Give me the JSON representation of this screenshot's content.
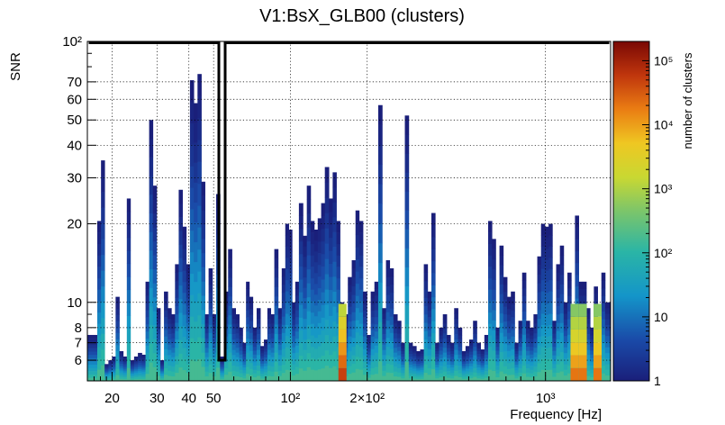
{
  "chart_data": {
    "type": "heatmap",
    "title": "V1:BsX_GLB00 (clusters)",
    "xlabel": "Frequency [Hz]",
    "ylabel": "SNR",
    "zlabel": "number of clusters",
    "x_scale": "log",
    "y_scale": "log",
    "z_scale": "log",
    "xlim": [
      16,
      1800
    ],
    "ylim": [
      5,
      100
    ],
    "zlim": [
      1,
      200000
    ],
    "grid": true,
    "x_ticks": [
      {
        "value": 20,
        "label": "20"
      },
      {
        "value": 30,
        "label": "30"
      },
      {
        "value": 40,
        "label": "40"
      },
      {
        "value": 50,
        "label": "50"
      },
      {
        "value": 100,
        "label": "10²"
      },
      {
        "value": 200,
        "label": "2×10²"
      },
      {
        "value": 1000,
        "label": "10³"
      }
    ],
    "y_ticks": [
      {
        "value": 6,
        "label": "6"
      },
      {
        "value": 7,
        "label": "7"
      },
      {
        "value": 8,
        "label": "8"
      },
      {
        "value": 10,
        "label": "10"
      },
      {
        "value": 20,
        "label": "20"
      },
      {
        "value": 30,
        "label": "30"
      },
      {
        "value": 40,
        "label": "40"
      },
      {
        "value": 50,
        "label": "50"
      },
      {
        "value": 60,
        "label": "60"
      },
      {
        "value": 70,
        "label": "70"
      },
      {
        "value": 100,
        "label": "10²"
      }
    ],
    "z_ticks": [
      {
        "value": 1,
        "label": "1"
      },
      {
        "value": 10,
        "label": "10"
      },
      {
        "value": 100,
        "label": "10²"
      },
      {
        "value": 1000,
        "label": "10³"
      },
      {
        "value": 10000,
        "label": "10⁴"
      },
      {
        "value": 100000,
        "label": "10⁵"
      }
    ],
    "column_peaks": [
      {
        "f": 17.2,
        "snr": 7.5
      },
      {
        "f": 17.8,
        "snr": 20.5
      },
      {
        "f": 18.4,
        "snr": 35
      },
      {
        "f": 19.0,
        "snr": 5.8
      },
      {
        "f": 19.7,
        "snr": 6
      },
      {
        "f": 20.3,
        "snr": 6.2
      },
      {
        "f": 21.0,
        "snr": 10.5
      },
      {
        "f": 21.7,
        "snr": 6.5
      },
      {
        "f": 22.5,
        "snr": 6.2
      },
      {
        "f": 23.2,
        "snr": 25
      },
      {
        "f": 24.0,
        "snr": 6
      },
      {
        "f": 24.8,
        "snr": 6.2
      },
      {
        "f": 25.7,
        "snr": 6.4
      },
      {
        "f": 26.6,
        "snr": 6.3
      },
      {
        "f": 27.5,
        "snr": 12
      },
      {
        "f": 28.4,
        "snr": 50
      },
      {
        "f": 29.4,
        "snr": 28
      },
      {
        "f": 30.4,
        "snr": 9.5
      },
      {
        "f": 31.4,
        "snr": 6
      },
      {
        "f": 32.5,
        "snr": 11
      },
      {
        "f": 33.6,
        "snr": 9.5
      },
      {
        "f": 34.7,
        "snr": 9
      },
      {
        "f": 35.9,
        "snr": 14
      },
      {
        "f": 37.1,
        "snr": 27
      },
      {
        "f": 38.4,
        "snr": 19.5
      },
      {
        "f": 39.7,
        "snr": 14
      },
      {
        "f": 41.1,
        "snr": 71
      },
      {
        "f": 42.5,
        "snr": 58
      },
      {
        "f": 44.0,
        "snr": 75
      },
      {
        "f": 45.5,
        "snr": 29
      },
      {
        "f": 47.0,
        "snr": 9
      },
      {
        "f": 48.6,
        "snr": 13.5
      },
      {
        "f": 50.3,
        "snr": 9
      },
      {
        "f": 52.0,
        "snr": 26
      },
      {
        "f": 54.0,
        "snr": 6.2
      },
      {
        "f": 56.0,
        "snr": 11
      },
      {
        "f": 58.0,
        "snr": 16
      },
      {
        "f": 60.0,
        "snr": 9.5
      },
      {
        "f": 62.0,
        "snr": 9
      },
      {
        "f": 64.0,
        "snr": 8
      },
      {
        "f": 66.0,
        "snr": 7
      },
      {
        "f": 68.0,
        "snr": 12
      },
      {
        "f": 70.0,
        "snr": 10.5
      },
      {
        "f": 72.5,
        "snr": 8
      },
      {
        "f": 75.0,
        "snr": 9.5
      },
      {
        "f": 77.5,
        "snr": 6.8
      },
      {
        "f": 80.0,
        "snr": 7.2
      },
      {
        "f": 82.5,
        "snr": 9.5
      },
      {
        "f": 85.0,
        "snr": 9
      },
      {
        "f": 88.0,
        "snr": 16
      },
      {
        "f": 91.0,
        "snr": 9.5
      },
      {
        "f": 94.0,
        "snr": 13.5
      },
      {
        "f": 97.0,
        "snr": 20
      },
      {
        "f": 100.0,
        "snr": 19
      },
      {
        "f": 103.0,
        "snr": 10
      },
      {
        "f": 106.0,
        "snr": 12
      },
      {
        "f": 110.0,
        "snr": 24
      },
      {
        "f": 114.0,
        "snr": 18
      },
      {
        "f": 118.0,
        "snr": 28
      },
      {
        "f": 122.0,
        "snr": 20.5
      },
      {
        "f": 126.0,
        "snr": 19
      },
      {
        "f": 130.0,
        "snr": 21
      },
      {
        "f": 134.0,
        "snr": 24
      },
      {
        "f": 139.0,
        "snr": 33
      },
      {
        "f": 144.0,
        "snr": 25
      },
      {
        "f": 149.0,
        "snr": 31.5
      },
      {
        "f": 154.0,
        "snr": 20.5
      },
      {
        "f": 159.0,
        "snr": 10
      },
      {
        "f": 165.0,
        "snr": 9
      },
      {
        "f": 171.0,
        "snr": 12.5
      },
      {
        "f": 177.0,
        "snr": 14.5
      },
      {
        "f": 183.0,
        "snr": 22.5
      },
      {
        "f": 189.0,
        "snr": 20.5
      },
      {
        "f": 196.0,
        "snr": 11
      },
      {
        "f": 203.0,
        "snr": 7.5
      },
      {
        "f": 210.0,
        "snr": 11
      },
      {
        "f": 217.0,
        "snr": 12
      },
      {
        "f": 225.0,
        "snr": 57
      },
      {
        "f": 233.0,
        "snr": 9.5
      },
      {
        "f": 241.0,
        "snr": 14.5
      },
      {
        "f": 249.0,
        "snr": 13.5
      },
      {
        "f": 258.0,
        "snr": 9
      },
      {
        "f": 267.0,
        "snr": 8.5
      },
      {
        "f": 276.0,
        "snr": 7
      },
      {
        "f": 286.0,
        "snr": 52
      },
      {
        "f": 296.0,
        "snr": 7
      },
      {
        "f": 306.0,
        "snr": 6.8
      },
      {
        "f": 317.0,
        "snr": 6.5
      },
      {
        "f": 328.0,
        "snr": 6.6
      },
      {
        "f": 339.0,
        "snr": 14
      },
      {
        "f": 351.0,
        "snr": 11
      },
      {
        "f": 363.0,
        "snr": 22
      },
      {
        "f": 376.0,
        "snr": 7
      },
      {
        "f": 389.0,
        "snr": 8
      },
      {
        "f": 403.0,
        "snr": 9
      },
      {
        "f": 417.0,
        "snr": 7.5
      },
      {
        "f": 431.0,
        "snr": 7
      },
      {
        "f": 446.0,
        "snr": 9.5
      },
      {
        "f": 462.0,
        "snr": 8
      },
      {
        "f": 478.0,
        "snr": 6.5
      },
      {
        "f": 494.0,
        "snr": 6.8
      },
      {
        "f": 511.0,
        "snr": 7.2
      },
      {
        "f": 529.0,
        "snr": 8.5
      },
      {
        "f": 547.0,
        "snr": 7
      },
      {
        "f": 566.0,
        "snr": 6.6
      },
      {
        "f": 586.0,
        "snr": 7.5
      },
      {
        "f": 606.0,
        "snr": 20.5
      },
      {
        "f": 627.0,
        "snr": 17.5
      },
      {
        "f": 649.0,
        "snr": 8
      },
      {
        "f": 671.0,
        "snr": 16.5
      },
      {
        "f": 695.0,
        "snr": 12.5
      },
      {
        "f": 719.0,
        "snr": 10.5
      },
      {
        "f": 744.0,
        "snr": 11
      },
      {
        "f": 770.0,
        "snr": 7
      },
      {
        "f": 796.0,
        "snr": 8.5
      },
      {
        "f": 824.0,
        "snr": 13
      },
      {
        "f": 853.0,
        "snr": 8.5
      },
      {
        "f": 882.0,
        "snr": 8
      },
      {
        "f": 913.0,
        "snr": 9
      },
      {
        "f": 944.0,
        "snr": 15
      },
      {
        "f": 977.0,
        "snr": 20
      },
      {
        "f": 1011.0,
        "snr": 19.5
      },
      {
        "f": 1046.0,
        "snr": 20
      },
      {
        "f": 1082.0,
        "snr": 8.5
      },
      {
        "f": 1120.0,
        "snr": 14
      },
      {
        "f": 1158.0,
        "snr": 16.5
      },
      {
        "f": 1198.0,
        "snr": 10
      },
      {
        "f": 1240.0,
        "snr": 13
      },
      {
        "f": 1283.0,
        "snr": 9
      },
      {
        "f": 1327.0,
        "snr": 21.5
      },
      {
        "f": 1373.0,
        "snr": 12
      },
      {
        "f": 1421.0,
        "snr": 12
      },
      {
        "f": 1470.0,
        "snr": 9.5
      },
      {
        "f": 1521.0,
        "snr": 8
      },
      {
        "f": 1574.0,
        "snr": 11.5
      },
      {
        "f": 1628.0,
        "snr": 7
      },
      {
        "f": 1684.0,
        "snr": 13
      },
      {
        "f": 1742.0,
        "snr": 10
      }
    ],
    "hot_spots": [
      {
        "f": 160,
        "snr": 5,
        "count": 50000
      },
      {
        "f": 1300,
        "snr": 5,
        "count": 20000
      },
      {
        "f": 1400,
        "snr": 5,
        "count": 20000
      },
      {
        "f": 1600,
        "snr": 5,
        "count": 20000
      }
    ],
    "annotation_box": {
      "f_min": 16,
      "f_max": 52,
      "snr_min": 6,
      "snr_max": 100
    }
  }
}
